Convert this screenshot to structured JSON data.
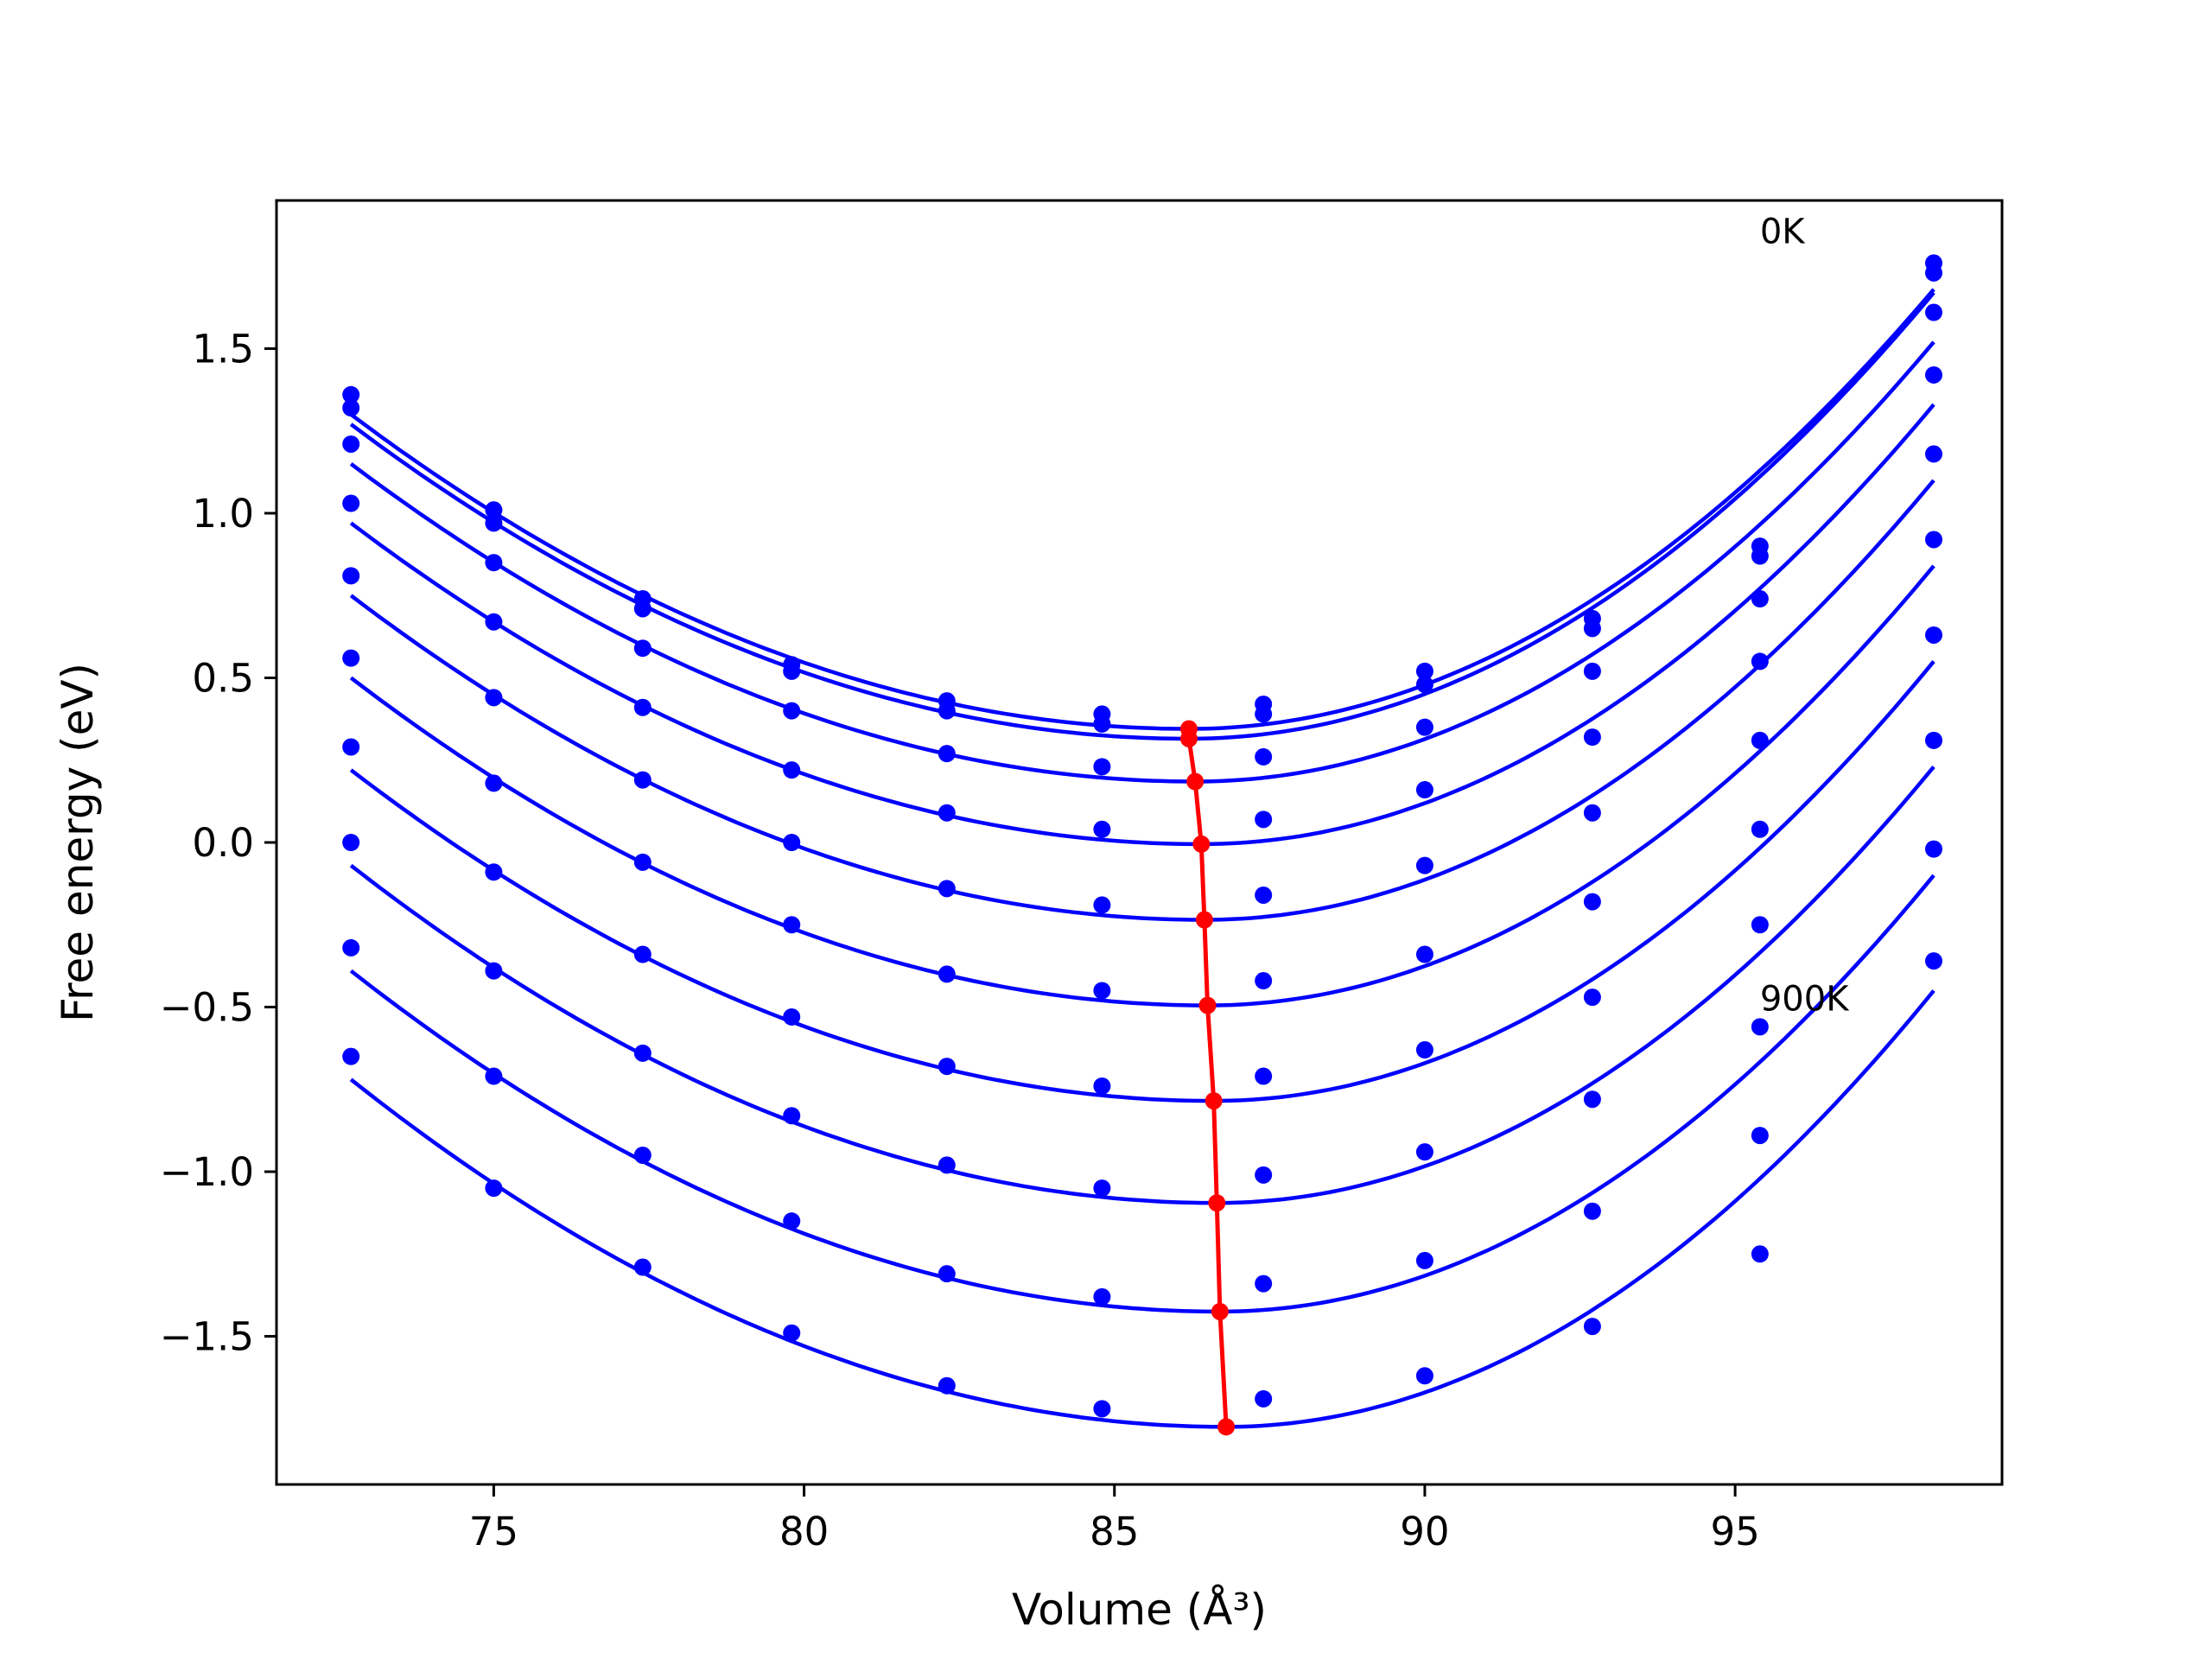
{
  "chart_data": {
    "type": "line",
    "xlabel": "Volume (Å³)",
    "ylabel": "Free energy (eV)",
    "xlim": [
      71.5,
      99.3
    ],
    "ylim": [
      -1.95,
      1.95
    ],
    "xticks": [
      75,
      80,
      85,
      90,
      95
    ],
    "yticks": [
      -1.5,
      -1.0,
      -0.5,
      0.0,
      0.5,
      1.0,
      1.5
    ],
    "xtick_labels": [
      "75",
      "80",
      "85",
      "90",
      "95"
    ],
    "ytick_labels": [
      "−1.5",
      "−1.0",
      "−0.5",
      "0.0",
      "0.5",
      "1.0",
      "1.5"
    ],
    "grid": false,
    "legend": "none",
    "annotations": [
      {
        "text": "0K",
        "x": 95.4,
        "y": 1.82
      },
      {
        "text": "900K",
        "x": 95.4,
        "y": -0.51
      }
    ],
    "colors": {
      "fit": "#0000ff",
      "points": "#0000ff",
      "minima": "#ff0000"
    },
    "volumes": [
      72.7,
      75.0,
      77.4,
      79.8,
      82.3,
      84.8,
      87.4,
      90.0,
      92.7,
      95.4,
      98.2
    ],
    "fit_range": [
      72.7,
      98.2
    ],
    "series": [
      {
        "values": [
          1.36,
          1.01,
          0.74,
          0.54,
          0.43,
          0.39,
          0.42,
          0.52,
          0.68,
          0.9,
          1.76
        ],
        "fit": {
          "vmin": 86.2,
          "fmin": 0.345,
          "left": 1.3,
          "right": 1.68
        }
      },
      {
        "values": [
          1.32,
          0.97,
          0.71,
          0.52,
          0.4,
          0.36,
          0.39,
          0.48,
          0.65,
          0.87,
          1.73
        ],
        "fit": {
          "vmin": 86.2,
          "fmin": 0.315,
          "left": 1.27,
          "right": 1.67
        }
      },
      {
        "values": [
          1.21,
          0.85,
          0.59,
          0.4,
          0.27,
          0.23,
          0.26,
          0.35,
          0.52,
          0.74,
          1.61
        ],
        "fit": {
          "vmin": 86.3,
          "fmin": 0.185,
          "left": 1.15,
          "right": 1.52
        }
      },
      {
        "values": [
          1.03,
          0.67,
          0.41,
          0.22,
          0.09,
          0.04,
          0.07,
          0.16,
          0.32,
          0.55,
          1.42
        ],
        "fit": {
          "vmin": 86.4,
          "fmin": -0.005,
          "left": 0.97,
          "right": 1.33
        }
      },
      {
        "values": [
          0.81,
          0.44,
          0.19,
          0.0,
          -0.14,
          -0.19,
          -0.16,
          -0.07,
          0.09,
          0.31,
          1.18
        ],
        "fit": {
          "vmin": 86.45,
          "fmin": -0.235,
          "left": 0.75,
          "right": 1.1
        }
      },
      {
        "values": [
          0.56,
          0.18,
          -0.06,
          -0.25,
          -0.4,
          -0.45,
          -0.42,
          -0.34,
          -0.18,
          0.04,
          0.92
        ],
        "fit": {
          "vmin": 86.5,
          "fmin": -0.495,
          "left": 0.5,
          "right": 0.84
        }
      },
      {
        "values": [
          0.29,
          -0.09,
          -0.34,
          -0.53,
          -0.68,
          -0.74,
          -0.71,
          -0.63,
          -0.47,
          -0.25,
          0.63
        ],
        "fit": {
          "vmin": 86.6,
          "fmin": -0.785,
          "left": 0.22,
          "right": 0.55
        }
      },
      {
        "values": [
          0.0,
          -0.39,
          -0.64,
          -0.83,
          -0.98,
          -1.05,
          -1.01,
          -0.94,
          -0.78,
          -0.56,
          0.31
        ],
        "fit": {
          "vmin": 86.65,
          "fmin": -1.095,
          "left": -0.07,
          "right": 0.23
        }
      },
      {
        "values": [
          -0.32,
          -0.71,
          -0.95,
          -1.15,
          -1.31,
          -1.38,
          -1.34,
          -1.27,
          -1.12,
          -0.89,
          -0.02
        ],
        "fit": {
          "vmin": 86.7,
          "fmin": -1.425,
          "left": -0.39,
          "right": -0.1
        }
      },
      {
        "values": [
          -0.65,
          -1.05,
          -1.29,
          -1.49,
          -1.65,
          -1.72,
          -1.69,
          -1.62,
          -1.47,
          -1.25,
          -0.36
        ],
        "fit": {
          "vmin": 86.8,
          "fmin": -1.775,
          "left": -0.72,
          "right": -0.45
        }
      }
    ],
    "minima_path": [
      {
        "x": 86.2,
        "y": 0.345
      },
      {
        "x": 86.2,
        "y": 0.315
      },
      {
        "x": 86.3,
        "y": 0.185
      },
      {
        "x": 86.4,
        "y": -0.005
      },
      {
        "x": 86.45,
        "y": -0.235
      },
      {
        "x": 86.5,
        "y": -0.495
      },
      {
        "x": 86.6,
        "y": -0.785
      },
      {
        "x": 86.65,
        "y": -1.095
      },
      {
        "x": 86.7,
        "y": -1.425
      },
      {
        "x": 86.8,
        "y": -1.775
      }
    ]
  }
}
